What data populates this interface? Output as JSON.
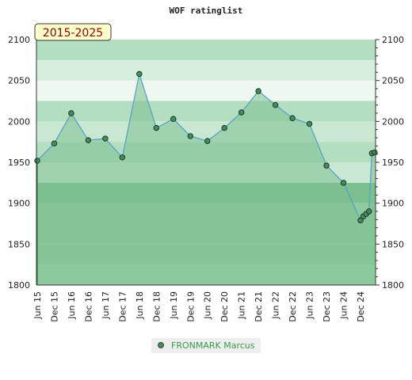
{
  "chart_data": {
    "type": "area",
    "title": "WOF ratinglist",
    "badge": "2015-2025",
    "ylim": [
      1800,
      2100
    ],
    "yticks": [
      1800,
      1850,
      1900,
      1950,
      2000,
      2050,
      2100
    ],
    "x_tick_labels": [
      "Jun 15",
      "Dec 15",
      "Jun 16",
      "Dec 16",
      "Jun 17",
      "Dec 17",
      "Jun 18",
      "Dec 18",
      "Jun 19",
      "Dec 19",
      "Jun 20",
      "Dec 20",
      "Jun 21",
      "Dec 21",
      "Jun 22",
      "Dec 22",
      "Jun 23",
      "Dec 23",
      "Jun 24",
      "Dec 24"
    ],
    "series": [
      {
        "name": "FRONMARK Marcus",
        "color": "#3d8f5a",
        "points": [
          {
            "x": "2015-06",
            "y": 1952
          },
          {
            "x": "2015-12",
            "y": 1973
          },
          {
            "x": "2016-06",
            "y": 2010
          },
          {
            "x": "2016-12",
            "y": 1977
          },
          {
            "x": "2017-06",
            "y": 1979
          },
          {
            "x": "2017-12",
            "y": 1956
          },
          {
            "x": "2018-06",
            "y": 2058
          },
          {
            "x": "2018-12",
            "y": 1992
          },
          {
            "x": "2019-06",
            "y": 2003
          },
          {
            "x": "2019-12",
            "y": 1982
          },
          {
            "x": "2020-06",
            "y": 1976
          },
          {
            "x": "2020-12",
            "y": 1992
          },
          {
            "x": "2021-06",
            "y": 2011
          },
          {
            "x": "2021-12",
            "y": 2037
          },
          {
            "x": "2022-06",
            "y": 2020
          },
          {
            "x": "2022-12",
            "y": 2004
          },
          {
            "x": "2023-06",
            "y": 1997
          },
          {
            "x": "2023-12",
            "y": 1946
          },
          {
            "x": "2024-06",
            "y": 1925
          },
          {
            "x": "2024-12",
            "y": 1879
          },
          {
            "x": "2025-01",
            "y": 1884
          },
          {
            "x": "2025-02",
            "y": 1887
          },
          {
            "x": "2025-03",
            "y": 1890
          },
          {
            "x": "2025-04",
            "y": 1961
          },
          {
            "x": "2025-05",
            "y": 1962
          }
        ]
      }
    ],
    "colors": {
      "band_dark": "#8fcba0",
      "band_light": "#b3dec0",
      "band_mid": "#c9e8d2",
      "band_pale": "#e6f4ea",
      "area_fill": "#7cc08f",
      "line": "#5aa3c9",
      "badge_bg": "#ffffcc"
    },
    "legend_position": "bottom-center"
  }
}
